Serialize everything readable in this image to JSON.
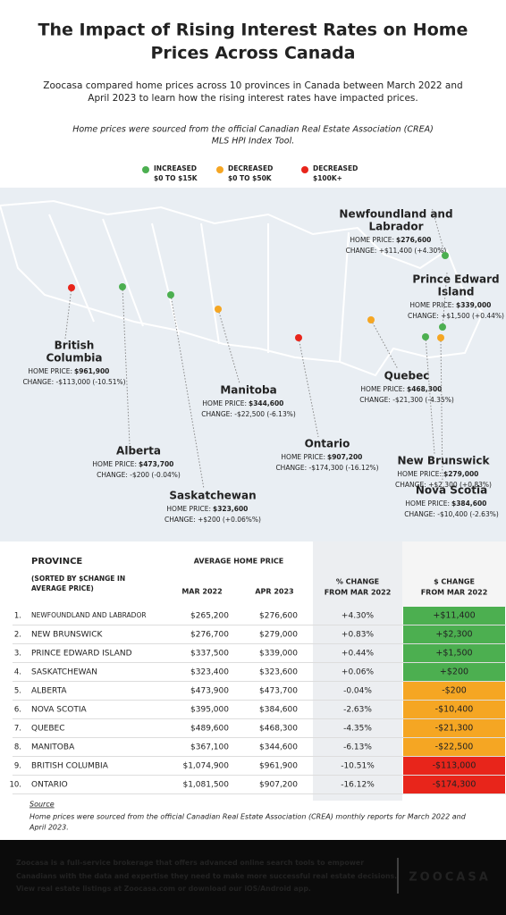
{
  "header": {
    "title": [
      "The Impact of Rising Interest Rates on Home",
      "Prices Across Canada"
    ],
    "intro": [
      "Zoocasa compared home prices across 10 provinces in Canada between March 2022 and",
      "April 2023 to learn how the rising interest rates have impacted prices."
    ],
    "note": [
      "Home prices were sourced from the official Canadian Real Estate Association (CREA)",
      "MLS HPI Index Tool."
    ]
  },
  "legend": [
    [
      "INCREASED",
      "$0 TO $15K"
    ],
    [
      "DECREASED",
      "$0 TO $50K"
    ],
    [
      "DECREASED",
      "$100K+"
    ]
  ],
  "map": [
    {
      "name": [
        "Newfoundland and",
        "Labrador"
      ],
      "price_label": "HOME PRICE:",
      "price": "$276,600",
      "change": "CHANGE: +$11,400 (+4.30%)"
    },
    {
      "name": [
        "Prince Edward",
        "Island"
      ],
      "price_label": "HOME PRICE:",
      "price": "$339,000",
      "change": "CHANGE: +$1,500 (+0.44%)"
    },
    {
      "name": [
        "British",
        "Columbia"
      ],
      "price_label": "HOME PRICE:",
      "price": "$961,900",
      "change": "CHANGE: -$113,000 (-10.51%)"
    },
    {
      "name": [
        "Alberta"
      ],
      "price_label": "HOME PRICE:",
      "price": "$473,700",
      "change": "CHANGE: -$200 (-0.04%)"
    },
    {
      "name": [
        "Saskatchewan"
      ],
      "price_label": "HOME PRICE:",
      "price": "$323,600",
      "change": "CHANGE: +$200 (+0.06%%)"
    },
    {
      "name": [
        "Manitoba"
      ],
      "price_label": "HOME PRICE:",
      "price": "$344,600",
      "change": "CHANGE: -$22,500 (-6.13%)"
    },
    {
      "name": [
        "Ontario"
      ],
      "price_label": "HOME PRICE:",
      "price": "$907,200",
      "change": "CHANGE: -$174,300 (-16.12%)"
    },
    {
      "name": [
        "Quebec"
      ],
      "price_label": "HOME PRICE:",
      "price": "$468,300",
      "change": "CHANGE: -$21,300 (-4.35%)"
    },
    {
      "name": [
        "New Brunswick"
      ],
      "price_label": "HOME PRICE:",
      "price": "$279,000",
      "change": "CHANGE: +$2,300 (+0.83%)"
    },
    {
      "name": [
        "Nova Scotia"
      ],
      "price_label": "HOME PRICE:",
      "price": "$384,600",
      "change": "CHANGE: -$10,400 (-2.63%)"
    }
  ],
  "table": {
    "province_header": "PROVINCE",
    "sort_note": [
      "(SORTED BY $CHANGE IN",
      "AVERAGE PRICE)"
    ],
    "avg_header": "AVERAGE HOME PRICE",
    "mar_header": "MAR 2022",
    "apr_header": "APR 2023",
    "pct_header": [
      "% CHANGE",
      "FROM MAR 2022"
    ],
    "chg_header": [
      "$ CHANGE",
      "FROM MAR 2022"
    ],
    "rows": [
      [
        "1.",
        "NEWFOUNDLAND AND LABRADOR",
        "$265,200",
        "$276,600",
        "+4.30%",
        "+$11,400"
      ],
      [
        "2.",
        "NEW BRUNSWICK",
        "$276,700",
        "$279,000",
        "+0.83%",
        "+$2,300"
      ],
      [
        "3.",
        "PRINCE EDWARD ISLAND",
        "$337,500",
        "$339,000",
        "+0.44%",
        "+$1,500"
      ],
      [
        "4.",
        "SASKATCHEWAN",
        "$323,400",
        "$323,600",
        "+0.06%",
        "+$200"
      ],
      [
        "5.",
        "ALBERTA",
        "$473,900",
        "$473,700",
        "-0.04%",
        "-$200"
      ],
      [
        "6.",
        "NOVA SCOTIA",
        "$395,000",
        "$384,600",
        "-2.63%",
        "-$10,400"
      ],
      [
        "7.",
        "QUEBEC",
        "$489,600",
        "$468,300",
        "-4.35%",
        "-$21,300"
      ],
      [
        "8.",
        "MANITOBA",
        "$367,100",
        "$344,600",
        "-6.13%",
        "-$22,500"
      ],
      [
        "9.",
        "BRITISH COLUMBIA",
        "$1,074,900",
        "$961,900",
        "-10.51%",
        "-$113,000"
      ],
      [
        "10.",
        "ONTARIO",
        "$1,081,500",
        "$907,200",
        "-16.12%",
        "-$174,300"
      ]
    ]
  },
  "source": {
    "label": "Source",
    "text": [
      "Home prices were sourced from the official Canadian Real Estate Association (CREA) monthly reports for March 2022 and",
      "April 2023."
    ]
  },
  "footer": {
    "text": [
      "Zoocasa is a full-service brokerage that offers advanced online search tools to empower",
      "Canadians with the data and expertise they need to make more successful real estate decisions.",
      "View real estate listings at Zoocasa.com or download our iOS/Android app."
    ],
    "logo": "ZOOCASA"
  }
}
